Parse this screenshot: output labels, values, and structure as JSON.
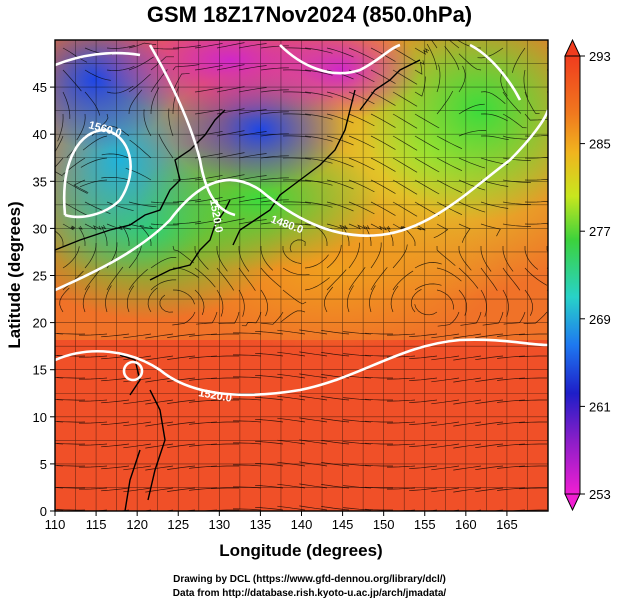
{
  "header": {
    "title": "GSM 18Z17Nov2024 (850.0hPa)"
  },
  "map": {
    "xlabel": "Longitude (degrees)",
    "ylabel": "Latitude  (degrees)",
    "lon_range": [
      110,
      170
    ],
    "lat_range": [
      0,
      50
    ],
    "lon_ticks": [
      "110",
      "115",
      "120",
      "125",
      "130",
      "135",
      "140",
      "145",
      "150",
      "155",
      "160",
      "165"
    ],
    "lat_ticks": [
      "0",
      "5",
      "10",
      "15",
      "20",
      "25",
      "30",
      "35",
      "40",
      "45"
    ],
    "contour_labels": [
      "1560.0",
      "1520.0",
      "1480.0",
      "1520.0"
    ],
    "colors": {
      "cold": "#e040c0",
      "cool": "#2040e0",
      "mild": "#40e080",
      "warm": "#f0a020",
      "hot": "#f04020"
    }
  },
  "colorbar": {
    "tick_labels": [
      "293",
      "285",
      "277",
      "269",
      "261",
      "253"
    ],
    "range": [
      253,
      293
    ]
  },
  "footer": {
    "line1": "Drawing by DCL (https://www.gfd-dennou.org/library/dcl/)",
    "line2": "Data from http://database.rish.kyoto-u.ac.jp/arch/jmadata/"
  }
}
